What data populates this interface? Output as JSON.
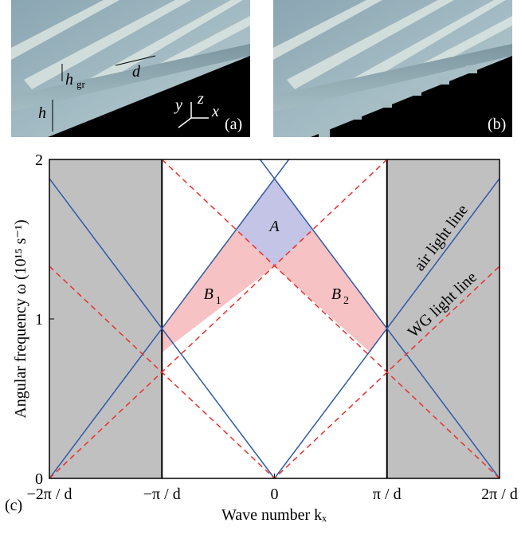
{
  "panels": [
    {
      "label": "(a)",
      "annotations": [
        "h",
        "h",
        "gr",
        "d",
        "y",
        "z",
        "x"
      ]
    },
    {
      "label": "(b)"
    }
  ],
  "chart_data": {
    "type": "line",
    "panel_label": "(c)",
    "xlabel": "Wave number kₓ",
    "ylabel": "Angular frequency ω (10¹⁵ s⁻¹)",
    "xlim": [
      -2,
      2
    ],
    "ylim": [
      0,
      2
    ],
    "xticks": [
      {
        "value": -2,
        "label": "−2π / d"
      },
      {
        "value": -1,
        "label": "−π / d"
      },
      0,
      {
        "value": 1,
        "label": "π / d"
      },
      {
        "value": 2,
        "label": "2π / d"
      }
    ],
    "yticks": [
      0,
      1,
      2
    ],
    "shaded_x": [
      [
        -2,
        -1
      ],
      [
        1,
        2
      ]
    ],
    "shaded_color": "#c0c0c0",
    "zone_edges": [
      -1,
      1
    ],
    "regions": [
      {
        "label": "A",
        "color": "#c4c4e6",
        "x": [
          0,
          -0.343,
          0,
          0.343
        ],
        "y": [
          1.88,
          1.557,
          1.33,
          1.557
        ]
      },
      {
        "label": "B",
        "subscript": "1",
        "color": "#f6c2c4",
        "x": [
          0,
          -0.343,
          -1,
          -1
        ],
        "y": [
          1.33,
          1.557,
          0.94,
          0.79
        ]
      },
      {
        "label": "B",
        "subscript": "2",
        "color": "#f6c2c4",
        "x": [
          0,
          0.343,
          1,
          0.85
        ],
        "y": [
          1.33,
          1.557,
          0.94,
          0.79
        ]
      }
    ],
    "series": [
      {
        "name": "air light line",
        "color": "#2f5aa8",
        "dash": false,
        "x": [
          -2,
          0,
          2
        ],
        "values": [
          1.88,
          0,
          1.88
        ]
      },
      {
        "color": "#2f5aa8",
        "dash": false,
        "x": [
          -2,
          0.128
        ],
        "values": [
          0,
          2
        ]
      },
      {
        "color": "#2f5aa8",
        "dash": false,
        "x": [
          -0.128,
          2
        ],
        "values": [
          2,
          0
        ]
      },
      {
        "name": "WG light line",
        "color": "#e8302c",
        "dash": true,
        "x": [
          -2,
          0,
          2
        ],
        "values": [
          1.33,
          0,
          1.33
        ]
      },
      {
        "color": "#e8302c",
        "dash": true,
        "x": [
          -1,
          2
        ],
        "values": [
          2,
          0
        ]
      },
      {
        "color": "#e8302c",
        "dash": true,
        "x": [
          -2,
          1
        ],
        "values": [
          0,
          2
        ]
      }
    ]
  }
}
